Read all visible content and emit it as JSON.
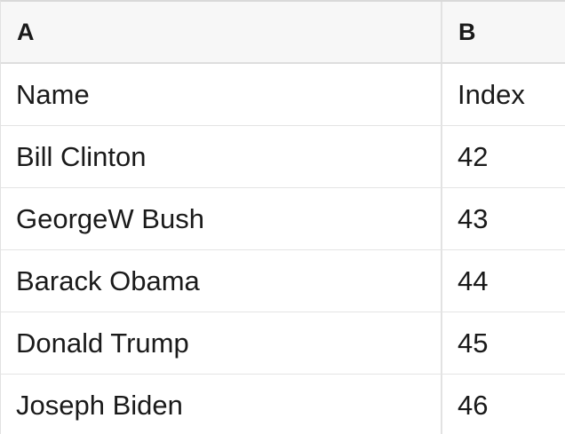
{
  "colors": {
    "header_background": "#f7f7f7",
    "cell_background": "#ffffff",
    "grid_border": "#e4e4e4",
    "top_border": "#d9d9d9",
    "text": "#1a1a1a"
  },
  "sheet": {
    "column_headers": [
      {
        "label": "A"
      },
      {
        "label": "B"
      }
    ],
    "rows": [
      {
        "a": "Name",
        "b": "Index"
      },
      {
        "a": "Bill Clinton",
        "b": "42"
      },
      {
        "a": "GeorgeW Bush",
        "b": "43"
      },
      {
        "a": "Barack Obama",
        "b": "44"
      },
      {
        "a": "Donald Trump",
        "b": "45"
      },
      {
        "a": "Joseph Biden",
        "b": "46"
      }
    ]
  }
}
